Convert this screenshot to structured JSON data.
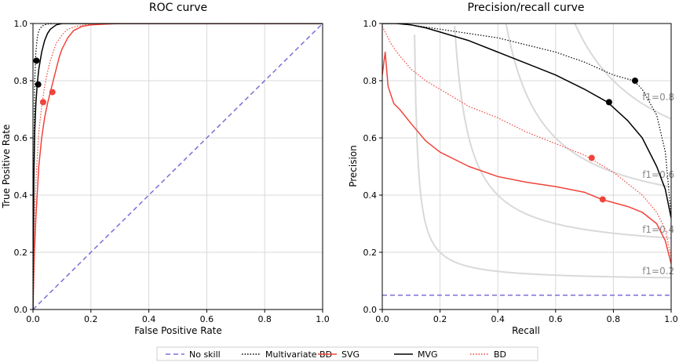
{
  "colors": {
    "no_skill": "#7b6fd6",
    "multivariate_bd": "#000000",
    "svg": "#f0443a",
    "mvg": "#000000",
    "bd": "#f0443a",
    "grid": "#d9d9d9",
    "f1_curve": "#d9d9d9",
    "f1_label": "#8a8a8a"
  },
  "legend": {
    "items": [
      {
        "key": "no_skill",
        "label": "No skill",
        "style": "dashed"
      },
      {
        "key": "multivariate_bd",
        "label": "Multivariate BD",
        "style": "dotted"
      },
      {
        "key": "svg",
        "label": "SVG",
        "style": "solid"
      },
      {
        "key": "mvg",
        "label": "MVG",
        "style": "solid"
      },
      {
        "key": "bd",
        "label": "BD",
        "style": "dotted"
      }
    ]
  },
  "chart_data": [
    {
      "type": "line",
      "title": "ROC curve",
      "xlabel": "False Positive Rate",
      "ylabel": "True Positive Rate",
      "xlim": [
        0,
        1
      ],
      "ylim": [
        0,
        1
      ],
      "xticks": [
        "0.0",
        "0.2",
        "0.4",
        "0.6",
        "0.8",
        "1.0"
      ],
      "yticks": [
        "0.0",
        "0.2",
        "0.4",
        "0.6",
        "0.8",
        "1.0"
      ],
      "grid": true,
      "series": [
        {
          "key": "no_skill",
          "name": "No skill",
          "style": "dashed",
          "x": [
            0,
            1
          ],
          "y": [
            0,
            1
          ]
        },
        {
          "key": "multivariate_bd",
          "name": "Multivariate BD",
          "style": "dotted",
          "x": [
            0,
            0.003,
            0.006,
            0.01,
            0.015,
            0.02,
            0.03,
            0.04,
            0.05,
            0.06,
            0.08,
            0.1,
            1.0
          ],
          "y": [
            0,
            0.5,
            0.8,
            0.9,
            0.95,
            0.975,
            0.99,
            0.995,
            0.998,
            0.999,
            1.0,
            1.0,
            1.0
          ],
          "marker": [
            0.012,
            0.87
          ]
        },
        {
          "key": "svg",
          "name": "SVG",
          "style": "solid",
          "x": [
            0,
            0.005,
            0.01,
            0.02,
            0.03,
            0.04,
            0.05,
            0.06,
            0.07,
            0.08,
            0.09,
            0.1,
            0.12,
            0.14,
            0.17,
            0.2,
            0.25,
            0.3,
            1.0
          ],
          "y": [
            0,
            0.2,
            0.32,
            0.5,
            0.6,
            0.67,
            0.72,
            0.76,
            0.8,
            0.84,
            0.88,
            0.91,
            0.95,
            0.975,
            0.99,
            0.995,
            0.998,
            1.0,
            1.0
          ],
          "marker": [
            0.067,
            0.76
          ]
        },
        {
          "key": "mvg",
          "name": "MVG",
          "style": "solid",
          "x": [
            0,
            0.003,
            0.006,
            0.01,
            0.015,
            0.02,
            0.03,
            0.04,
            0.05,
            0.06,
            0.08,
            0.1,
            1.0
          ],
          "y": [
            0,
            0.45,
            0.62,
            0.72,
            0.79,
            0.84,
            0.9,
            0.94,
            0.965,
            0.98,
            0.995,
            1.0,
            1.0
          ],
          "marker": [
            0.018,
            0.787
          ]
        },
        {
          "key": "bd",
          "name": "BD",
          "style": "dotted",
          "x": [
            0,
            0.005,
            0.01,
            0.02,
            0.03,
            0.04,
            0.05,
            0.06,
            0.07,
            0.08,
            0.1,
            0.12,
            0.15,
            0.2,
            0.25,
            1.0
          ],
          "y": [
            0,
            0.3,
            0.45,
            0.62,
            0.71,
            0.78,
            0.83,
            0.87,
            0.9,
            0.93,
            0.96,
            0.98,
            0.99,
            0.998,
            1.0,
            1.0
          ],
          "marker": [
            0.035,
            0.725
          ]
        }
      ]
    },
    {
      "type": "line",
      "title": "Precision/recall curve",
      "xlabel": "Recall",
      "ylabel": "Precision",
      "xlim": [
        0,
        1
      ],
      "ylim": [
        0,
        1
      ],
      "xticks": [
        "0.0",
        "0.2",
        "0.4",
        "0.6",
        "0.8",
        "1.0"
      ],
      "yticks": [
        "0.0",
        "0.2",
        "0.4",
        "0.6",
        "0.8",
        "1.0"
      ],
      "grid": true,
      "f1_levels": [
        0.2,
        0.4,
        0.6,
        0.8
      ],
      "f1_labels": [
        "f1=0.2",
        "f1=0.4",
        "f1=0.6",
        "f1=0.8"
      ],
      "series": [
        {
          "key": "no_skill",
          "name": "No skill",
          "style": "dashed",
          "x": [
            0,
            1
          ],
          "y": [
            0.05,
            0.05
          ]
        },
        {
          "key": "multivariate_bd",
          "name": "Multivariate BD",
          "style": "dotted",
          "x": [
            0,
            0.05,
            0.1,
            0.2,
            0.3,
            0.4,
            0.5,
            0.6,
            0.7,
            0.8,
            0.87,
            0.9,
            0.95,
            0.98,
            1.0
          ],
          "y": [
            1.0,
            1.0,
            0.995,
            0.98,
            0.965,
            0.95,
            0.925,
            0.9,
            0.865,
            0.82,
            0.8,
            0.77,
            0.68,
            0.55,
            0.33
          ],
          "marker": [
            0.875,
            0.8
          ]
        },
        {
          "key": "svg",
          "name": "SVG",
          "style": "solid",
          "x": [
            0,
            0.01,
            0.02,
            0.04,
            0.06,
            0.1,
            0.15,
            0.2,
            0.3,
            0.4,
            0.5,
            0.6,
            0.7,
            0.76,
            0.85,
            0.9,
            0.95,
            0.98,
            1.0
          ],
          "y": [
            0.82,
            0.9,
            0.78,
            0.72,
            0.7,
            0.65,
            0.59,
            0.55,
            0.5,
            0.465,
            0.445,
            0.43,
            0.41,
            0.385,
            0.36,
            0.34,
            0.3,
            0.24,
            0.16
          ],
          "marker": [
            0.763,
            0.385
          ]
        },
        {
          "key": "mvg",
          "name": "MVG",
          "style": "solid",
          "x": [
            0,
            0.05,
            0.1,
            0.15,
            0.2,
            0.3,
            0.4,
            0.5,
            0.6,
            0.7,
            0.78,
            0.85,
            0.9,
            0.95,
            0.98,
            1.0
          ],
          "y": [
            1.0,
            1.0,
            0.995,
            0.985,
            0.97,
            0.94,
            0.9,
            0.86,
            0.82,
            0.77,
            0.725,
            0.66,
            0.6,
            0.5,
            0.42,
            0.32
          ],
          "marker": [
            0.785,
            0.725
          ]
        },
        {
          "key": "bd",
          "name": "BD",
          "style": "dotted",
          "x": [
            0,
            0.01,
            0.03,
            0.05,
            0.1,
            0.15,
            0.2,
            0.3,
            0.4,
            0.5,
            0.6,
            0.7,
            0.8,
            0.85,
            0.9,
            0.95,
            0.98,
            1.0
          ],
          "y": [
            0.99,
            0.97,
            0.93,
            0.9,
            0.84,
            0.8,
            0.77,
            0.71,
            0.67,
            0.62,
            0.58,
            0.54,
            0.48,
            0.44,
            0.4,
            0.34,
            0.28,
            0.18
          ],
          "marker": [
            0.725,
            0.53
          ]
        }
      ]
    }
  ]
}
